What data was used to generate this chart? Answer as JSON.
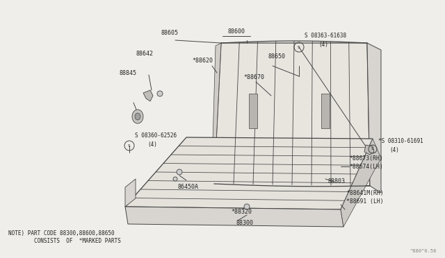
{
  "bg_color": "#f0eeea",
  "line_color": "#444444",
  "text_color": "#222222",
  "note_line1": "NOTE) PART CODE 88300,88600,88650",
  "note_line2": "        CONSISTS  OF  *MARKED PARTS",
  "watermark": "^880^0.58",
  "seat_back": {
    "fill": "#e8e6e1",
    "outline": "#444444"
  },
  "seat_cushion": {
    "fill": "#e8e6e1",
    "outline": "#444444"
  }
}
